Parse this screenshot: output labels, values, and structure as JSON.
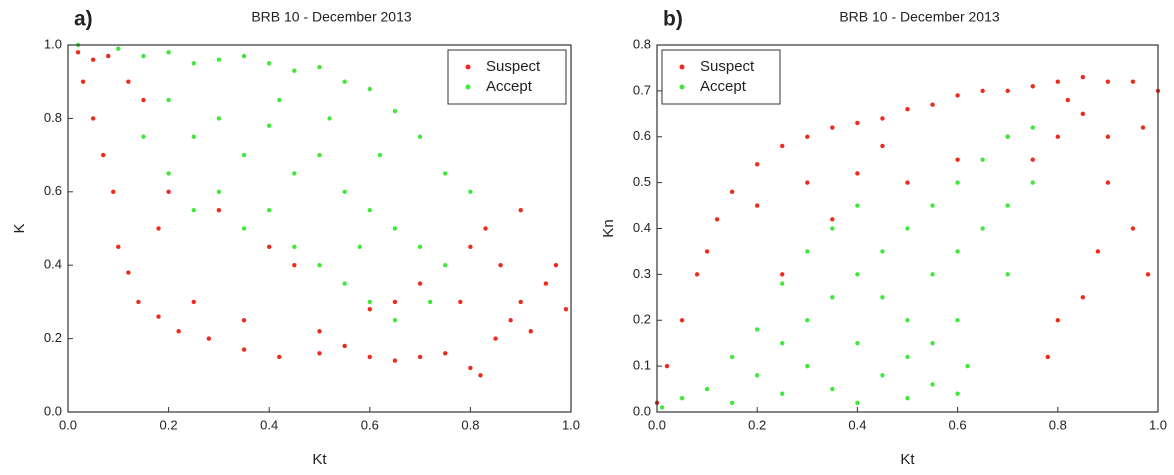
{
  "chart_data": [
    {
      "type": "scatter",
      "panel_label": "a)",
      "title": "BRB 10 - December 2013",
      "xlabel": "Kt",
      "ylabel": "K",
      "xlim": [
        0,
        1
      ],
      "ylim": [
        0,
        1
      ],
      "xticks": [
        {
          "value": 0,
          "label": "0.0"
        },
        0.2,
        0.4,
        0.6,
        0.8,
        {
          "value": 1,
          "label": "1.0"
        }
      ],
      "yticks": [
        {
          "value": 0,
          "label": "0.0"
        },
        0.2,
        0.4,
        0.6,
        0.8,
        {
          "value": 1,
          "label": "1.0"
        }
      ],
      "legend": "upper right",
      "series": [
        {
          "name": "Suspect",
          "color": "#ee2a1c",
          "x": [
            0.02,
            0.05,
            0.08,
            0.03,
            0.05,
            0.07,
            0.09,
            0.1,
            0.12,
            0.14,
            0.18,
            0.22,
            0.28,
            0.35,
            0.42,
            0.5,
            0.55,
            0.6,
            0.65,
            0.7,
            0.75,
            0.8,
            0.82,
            0.85,
            0.88,
            0.9,
            0.92,
            0.95,
            0.97,
            0.99,
            0.78,
            0.8,
            0.83,
            0.86,
            0.9,
            0.7,
            0.65,
            0.6,
            0.45,
            0.4,
            0.3,
            0.2,
            0.18,
            0.25,
            0.35,
            0.5,
            0.15,
            0.12
          ],
          "values": [
            0.98,
            0.96,
            0.97,
            0.9,
            0.8,
            0.7,
            0.6,
            0.45,
            0.38,
            0.3,
            0.26,
            0.22,
            0.2,
            0.17,
            0.15,
            0.16,
            0.18,
            0.15,
            0.14,
            0.15,
            0.16,
            0.12,
            0.1,
            0.2,
            0.25,
            0.3,
            0.22,
            0.35,
            0.4,
            0.28,
            0.3,
            0.45,
            0.5,
            0.4,
            0.55,
            0.35,
            0.3,
            0.28,
            0.4,
            0.45,
            0.55,
            0.6,
            0.5,
            0.3,
            0.25,
            0.22,
            0.85,
            0.9
          ]
        },
        {
          "name": "Accept",
          "color": "#3fe83a",
          "x": [
            0.02,
            0.1,
            0.15,
            0.2,
            0.25,
            0.3,
            0.35,
            0.4,
            0.45,
            0.5,
            0.55,
            0.6,
            0.65,
            0.7,
            0.75,
            0.8,
            0.2,
            0.25,
            0.3,
            0.35,
            0.4,
            0.45,
            0.5,
            0.55,
            0.6,
            0.65,
            0.7,
            0.75,
            0.3,
            0.35,
            0.4,
            0.45,
            0.5,
            0.55,
            0.6,
            0.65,
            0.2,
            0.15,
            0.25,
            0.42,
            0.52,
            0.62,
            0.72,
            0.58
          ],
          "values": [
            1.0,
            0.99,
            0.97,
            0.98,
            0.95,
            0.96,
            0.97,
            0.95,
            0.93,
            0.94,
            0.9,
            0.88,
            0.82,
            0.75,
            0.65,
            0.6,
            0.85,
            0.75,
            0.8,
            0.7,
            0.78,
            0.65,
            0.7,
            0.6,
            0.55,
            0.5,
            0.45,
            0.4,
            0.6,
            0.5,
            0.55,
            0.45,
            0.4,
            0.35,
            0.3,
            0.25,
            0.65,
            0.75,
            0.55,
            0.85,
            0.8,
            0.7,
            0.3,
            0.45
          ]
        }
      ]
    },
    {
      "type": "scatter",
      "panel_label": "b)",
      "title": "BRB 10 - December 2013",
      "xlabel": "Kt",
      "ylabel": "Kn",
      "xlim": [
        0,
        1
      ],
      "ylim": [
        0,
        0.8
      ],
      "xticks": [
        {
          "value": 0,
          "label": "0.0"
        },
        0.2,
        0.4,
        0.6,
        0.8,
        {
          "value": 1,
          "label": "1.0"
        }
      ],
      "yticks": [
        {
          "value": 0,
          "label": "0.0"
        },
        0.1,
        0.2,
        0.3,
        0.4,
        0.5,
        0.6,
        0.7,
        0.8
      ],
      "legend": "upper left",
      "series": [
        {
          "name": "Suspect",
          "color": "#ee2a1c",
          "x": [
            0.0,
            0.02,
            0.05,
            0.08,
            0.1,
            0.12,
            0.15,
            0.2,
            0.25,
            0.3,
            0.35,
            0.4,
            0.45,
            0.5,
            0.55,
            0.6,
            0.65,
            0.7,
            0.75,
            0.8,
            0.85,
            0.9,
            0.95,
            1.0,
            0.85,
            0.8,
            0.9,
            0.95,
            0.98,
            0.85,
            0.8,
            0.78,
            0.9,
            0.75,
            0.7,
            0.6,
            0.5,
            0.4,
            0.3,
            0.2,
            0.25,
            0.35,
            0.45,
            0.88,
            0.82,
            0.97
          ],
          "values": [
            0.02,
            0.1,
            0.2,
            0.3,
            0.35,
            0.42,
            0.48,
            0.54,
            0.58,
            0.6,
            0.62,
            0.63,
            0.64,
            0.66,
            0.67,
            0.69,
            0.7,
            0.7,
            0.71,
            0.72,
            0.73,
            0.72,
            0.72,
            0.7,
            0.65,
            0.6,
            0.5,
            0.4,
            0.3,
            0.25,
            0.2,
            0.12,
            0.6,
            0.55,
            0.6,
            0.55,
            0.5,
            0.52,
            0.5,
            0.45,
            0.3,
            0.42,
            0.58,
            0.35,
            0.68,
            0.62
          ]
        },
        {
          "name": "Accept",
          "color": "#3fe83a",
          "x": [
            0.01,
            0.05,
            0.1,
            0.15,
            0.2,
            0.25,
            0.3,
            0.35,
            0.4,
            0.45,
            0.5,
            0.55,
            0.6,
            0.15,
            0.2,
            0.25,
            0.3,
            0.35,
            0.4,
            0.45,
            0.5,
            0.55,
            0.6,
            0.65,
            0.7,
            0.75,
            0.3,
            0.35,
            0.4,
            0.45,
            0.5,
            0.55,
            0.6,
            0.65,
            0.7,
            0.75,
            0.5,
            0.6,
            0.7,
            0.25,
            0.4,
            0.62,
            0.55
          ],
          "values": [
            0.01,
            0.03,
            0.05,
            0.02,
            0.08,
            0.04,
            0.1,
            0.05,
            0.02,
            0.08,
            0.03,
            0.06,
            0.04,
            0.12,
            0.18,
            0.15,
            0.2,
            0.25,
            0.3,
            0.35,
            0.4,
            0.45,
            0.5,
            0.55,
            0.6,
            0.62,
            0.35,
            0.4,
            0.45,
            0.25,
            0.2,
            0.3,
            0.35,
            0.4,
            0.45,
            0.5,
            0.12,
            0.2,
            0.3,
            0.28,
            0.15,
            0.1,
            0.15
          ]
        }
      ]
    }
  ]
}
